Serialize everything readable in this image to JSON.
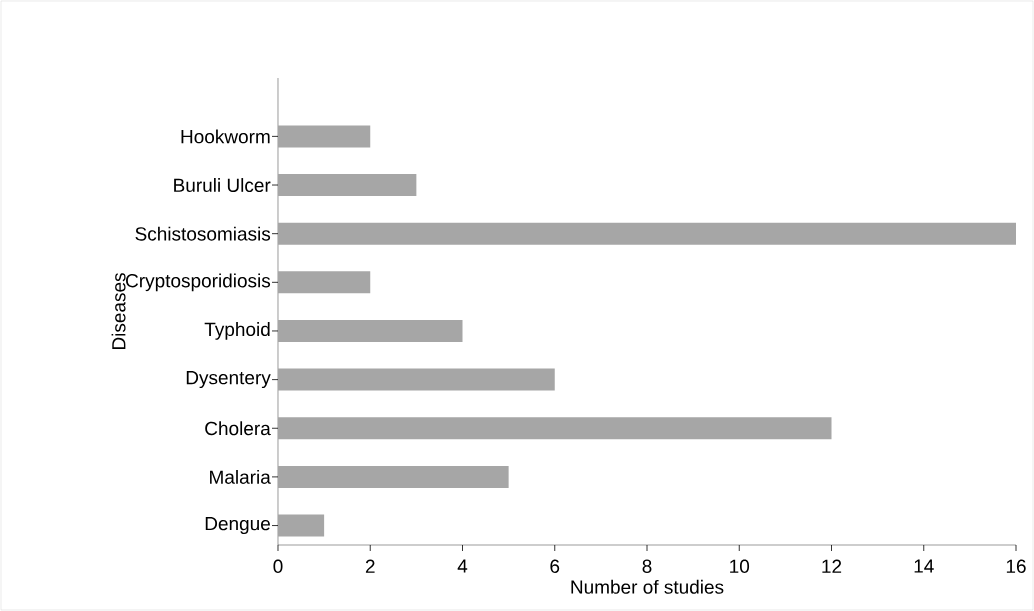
{
  "chart_data": {
    "type": "bar",
    "orientation": "horizontal",
    "xlabel": "Number of studies",
    "ylabel": "Diseases",
    "categories": [
      "Hookworm",
      "Buruli Ulcer",
      "Schistosomiasis",
      "Cryptosporidiosis",
      "Typhoid",
      "Dysentery",
      "Cholera",
      "Malaria",
      "Dengue"
    ],
    "values": [
      2,
      3,
      16,
      2,
      4,
      6,
      12,
      5,
      1
    ],
    "color": "#a6a6a6",
    "xlim": [
      0,
      16
    ],
    "xticks": [
      0,
      2,
      4,
      6,
      8,
      10,
      12,
      14,
      16
    ],
    "grid": false
  }
}
